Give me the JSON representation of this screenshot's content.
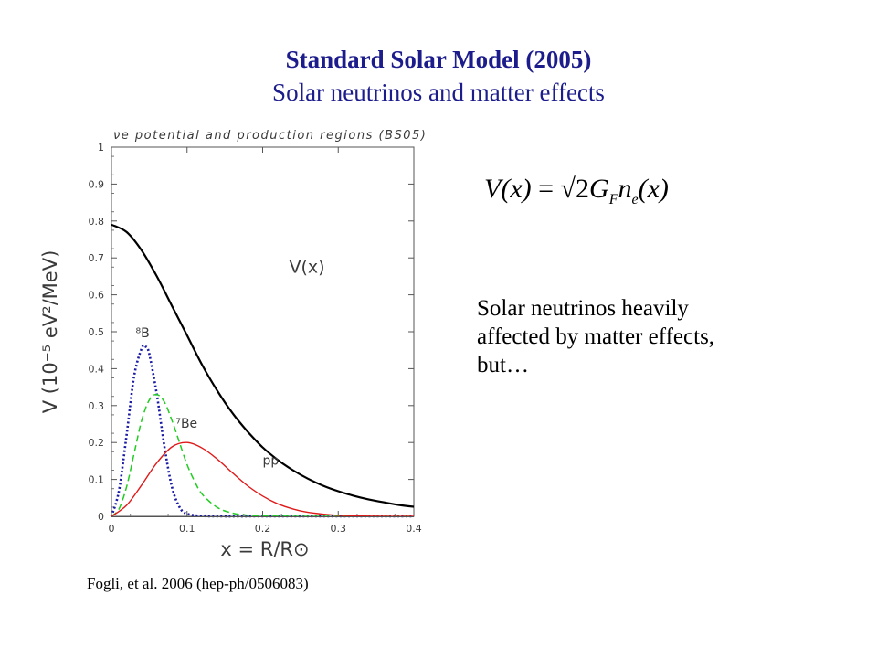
{
  "slide": {
    "title": "Standard Solar Model (2005)",
    "subtitle": "Solar neutrinos and matter effects",
    "equation": {
      "lhs": "V(x)",
      "equals": "=",
      "root": "√2",
      "G": "G",
      "G_sub": "F",
      "n": "n",
      "n_sub": "e",
      "arg": "(x)"
    },
    "body_lines": [
      "Solar neutrinos heavily",
      "affected by matter effects,",
      "but…"
    ],
    "citation": "Fogli, et al. 2006 (hep-ph/0506083)"
  },
  "chart_data": {
    "type": "line",
    "title": "νe potential and production regions (BS05)",
    "xlabel": "x = R/R⊙",
    "ylabel": "V (10⁻⁵ eV²/MeV)",
    "xlim": [
      0,
      0.4
    ],
    "ylim": [
      0,
      1
    ],
    "x_ticks": [
      "0",
      "0.1",
      "0.2",
      "0.3",
      "0.4"
    ],
    "y_ticks": [
      "0",
      "0.1",
      "0.2",
      "0.3",
      "0.4",
      "0.5",
      "0.6",
      "0.7",
      "0.8",
      "0.9",
      "1"
    ],
    "grid": false,
    "series": [
      {
        "name": "V(x)",
        "color": "#000000",
        "style": "solid",
        "x": [
          0,
          0.02,
          0.04,
          0.06,
          0.08,
          0.1,
          0.12,
          0.14,
          0.16,
          0.18,
          0.2,
          0.22,
          0.24,
          0.26,
          0.28,
          0.3,
          0.32,
          0.34,
          0.36,
          0.38,
          0.4
        ],
        "y": [
          0.79,
          0.77,
          0.72,
          0.65,
          0.57,
          0.49,
          0.41,
          0.34,
          0.28,
          0.23,
          0.187,
          0.153,
          0.125,
          0.102,
          0.083,
          0.068,
          0.056,
          0.046,
          0.038,
          0.031,
          0.026
        ]
      },
      {
        "name": "⁸B",
        "color": "#1a1aa6",
        "style": "dotted",
        "x": [
          0,
          0.01,
          0.02,
          0.03,
          0.04,
          0.045,
          0.05,
          0.06,
          0.07,
          0.08,
          0.09,
          0.1,
          0.12,
          0.15,
          0.2,
          0.4
        ],
        "y": [
          0,
          0.07,
          0.22,
          0.38,
          0.455,
          0.46,
          0.44,
          0.33,
          0.19,
          0.08,
          0.025,
          0.007,
          0.001,
          0,
          0,
          0
        ]
      },
      {
        "name": "⁷Be",
        "color": "#22cc22",
        "style": "dashed",
        "x": [
          0,
          0.01,
          0.02,
          0.03,
          0.04,
          0.05,
          0.06,
          0.07,
          0.08,
          0.09,
          0.1,
          0.11,
          0.12,
          0.14,
          0.16,
          0.18,
          0.2,
          0.25,
          0.3,
          0.4
        ],
        "y": [
          0,
          0.02,
          0.08,
          0.17,
          0.26,
          0.315,
          0.33,
          0.31,
          0.26,
          0.2,
          0.14,
          0.095,
          0.06,
          0.024,
          0.009,
          0.003,
          0.001,
          0,
          0,
          0
        ]
      },
      {
        "name": "pp",
        "color": "#e01a1a",
        "style": "solid",
        "x": [
          0,
          0.02,
          0.04,
          0.06,
          0.08,
          0.1,
          0.12,
          0.14,
          0.16,
          0.18,
          0.2,
          0.22,
          0.24,
          0.26,
          0.28,
          0.3,
          0.33,
          0.36,
          0.4
        ],
        "y": [
          0,
          0.03,
          0.085,
          0.145,
          0.188,
          0.2,
          0.185,
          0.155,
          0.118,
          0.083,
          0.055,
          0.034,
          0.02,
          0.011,
          0.006,
          0.003,
          0.001,
          0,
          0
        ]
      }
    ],
    "annotations": [
      {
        "text": "V(x)",
        "x": 0.235,
        "y": 0.66
      },
      {
        "text": "⁸B",
        "x": 0.032,
        "y": 0.485
      },
      {
        "text": "⁷Be",
        "x": 0.085,
        "y": 0.24
      },
      {
        "text": "pp",
        "x": 0.2,
        "y": 0.14
      }
    ]
  }
}
